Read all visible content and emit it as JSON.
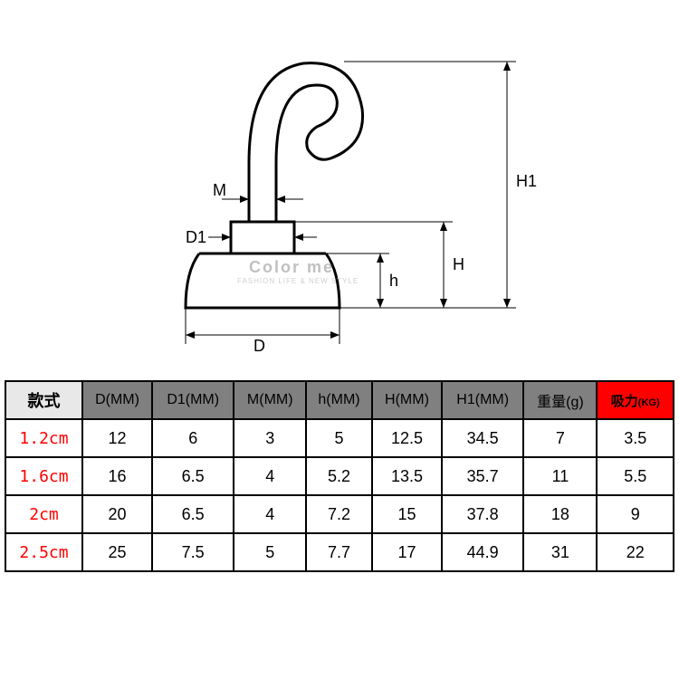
{
  "watermark": {
    "main": "Color me",
    "sub": "FASHION LIFE & NEW STYLE"
  },
  "diagram": {
    "labels": {
      "M": "M",
      "D1": "D1",
      "D": "D",
      "h": "h",
      "H": "H",
      "H1": "H1"
    },
    "stroke_color": "#000000",
    "stroke_width": 2,
    "arrow_size": 8
  },
  "table": {
    "headers": {
      "style": "款式",
      "D": "D(MM)",
      "D1": "D1(MM)",
      "M": "M(MM)",
      "h": "h(MM)",
      "H": "H(MM)",
      "H1": "H1(MM)",
      "weight": "重量(g)",
      "force": "吸力",
      "force_unit": "(KG)"
    },
    "header_bg": "#808080",
    "style_header_bg": "#e8e8e8",
    "force_header_bg": "#ff0000",
    "style_text_color": "#ff0000",
    "rows": [
      {
        "style": "1.2cm",
        "D": "12",
        "D1": "6",
        "M": "3",
        "h": "5",
        "H": "12.5",
        "H1": "34.5",
        "weight": "7",
        "force": "3.5"
      },
      {
        "style": "1.6cm",
        "D": "16",
        "D1": "6.5",
        "M": "4",
        "h": "5.2",
        "H": "13.5",
        "H1": "35.7",
        "weight": "11",
        "force": "5.5"
      },
      {
        "style": "2cm",
        "D": "20",
        "D1": "6.5",
        "M": "4",
        "h": "7.2",
        "H": "15",
        "H1": "37.8",
        "weight": "18",
        "force": "9"
      },
      {
        "style": "2.5cm",
        "D": "25",
        "D1": "7.5",
        "M": "5",
        "h": "7.7",
        "H": "17",
        "H1": "44.9",
        "weight": "31",
        "force": "22"
      }
    ]
  }
}
